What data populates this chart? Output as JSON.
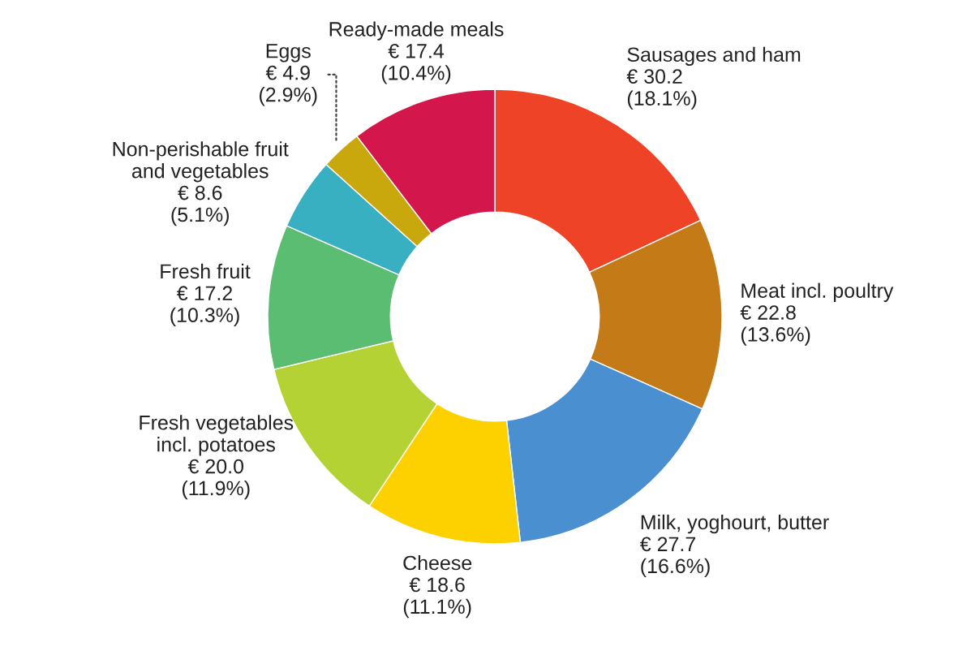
{
  "chart_data": {
    "type": "donut",
    "categories": [
      "Sausages and ham",
      "Meat incl. poultry",
      "Milk, yoghourt, butter",
      "Cheese",
      "Fresh vegetables\nincl. potatoes",
      "Fresh fruit",
      "Non-perishable fruit\nand vegetables",
      "Eggs",
      "Ready-made meals"
    ],
    "values": [
      30.2,
      22.8,
      27.7,
      18.6,
      20.0,
      17.2,
      8.6,
      4.9,
      17.4
    ],
    "colors": [
      "#ef4328",
      "#c47a16",
      "#4a8fcf",
      "#fdd100",
      "#b4d234",
      "#5bbd72",
      "#39b0c2",
      "#c8a80c",
      "#d3164b"
    ],
    "value_labels": [
      "€ 30.2\n(18.1%)",
      "€ 22.8\n(13.6%)",
      "€ 27.7\n(16.6%)",
      "€ 18.6\n(11.1%)",
      "€ 20.0\n(11.9%)",
      "€ 17.2\n(10.3%)",
      "€ 8.6\n(5.1%)",
      "€ 4.9\n(2.9%)",
      "€ 17.4\n(10.4%)"
    ]
  }
}
